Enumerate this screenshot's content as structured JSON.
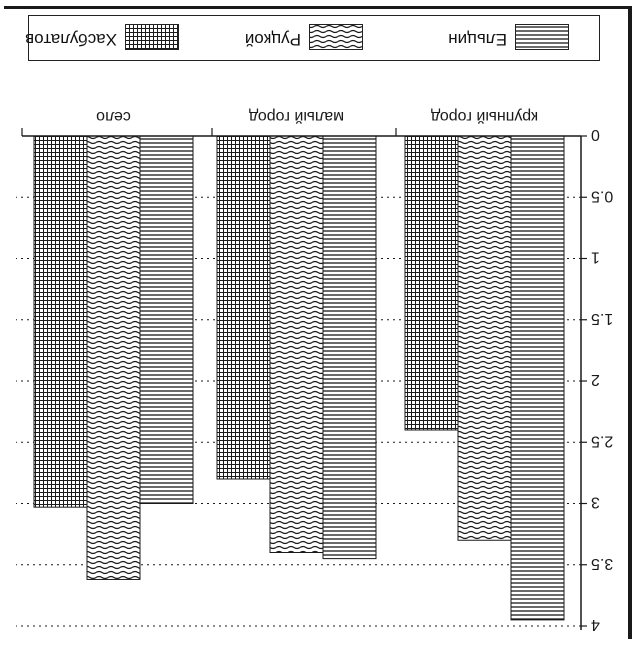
{
  "chart_data": {
    "type": "bar",
    "orientation": "vertical",
    "categories": [
      "крупный город",
      "малый город",
      "село"
    ],
    "series": [
      {
        "name": "Ельцин",
        "values": [
          3.95,
          3.45,
          3.0
        ],
        "pattern": "horizontal-lines"
      },
      {
        "name": "Руцкой",
        "values": [
          3.3,
          3.4,
          3.62
        ],
        "pattern": "waves"
      },
      {
        "name": "Хасбулатов",
        "values": [
          2.4,
          2.8,
          3.03
        ],
        "pattern": "grid"
      }
    ],
    "yticks": [
      "0",
      "0.5",
      "1",
      "1.5",
      "2",
      "2.5",
      "3",
      "3.5",
      "4"
    ],
    "ylim": [
      0,
      4
    ],
    "grid": "dotted horizontal",
    "legend_position": "bottom",
    "orientation_note": "printed upside down"
  },
  "colors": {
    "ink": "#1a1a1a",
    "paper": "#ffffff"
  }
}
